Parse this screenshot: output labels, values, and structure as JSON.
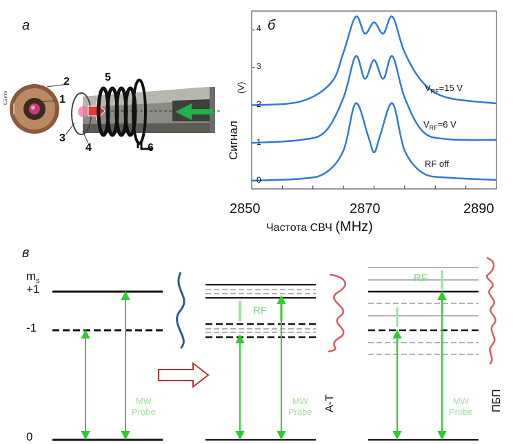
{
  "panels": {
    "a": "а",
    "b": "б",
    "v": "в"
  },
  "device": {
    "callouts": [
      "1",
      "2",
      "3",
      "4",
      "5",
      "6"
    ],
    "scale_text": "0,5 mm"
  },
  "spectrum": {
    "y_label": "Сигнал",
    "y_unit": "(V)",
    "x_label_ru": "Частота СВЧ",
    "x_label_unit": "(MHz)",
    "x_ticks": [
      "2850",
      "2870",
      "2890"
    ],
    "y_ticks": [
      "0",
      "1",
      "2",
      "3",
      "4"
    ],
    "traces": [
      {
        "label_main": "V",
        "label_sub": "RF",
        "label_value": "=15 V"
      },
      {
        "label_main": "V",
        "label_sub": "RF",
        "label_value": "=6 V"
      },
      {
        "label_main": "RF off",
        "label_sub": "",
        "label_value": ""
      }
    ],
    "colors": {
      "measured": "#2e7ad6",
      "fit": "#ef6f72"
    }
  },
  "chart_data": {
    "type": "line",
    "xlabel": "Частота СВЧ (MHz)",
    "ylabel": "Сигнал (V)",
    "xlim": [
      2850,
      2890
    ],
    "ylim": [
      0,
      4.5
    ],
    "series": [
      {
        "name": "RF off",
        "x": [
          2850,
          2858,
          2862,
          2865,
          2867,
          2869,
          2870,
          2871,
          2873,
          2875,
          2878,
          2882,
          2890
        ],
        "y": [
          0,
          0.05,
          0.2,
          0.8,
          2.05,
          1.2,
          0.75,
          1.2,
          2.05,
          0.8,
          0.2,
          0.08,
          0.02
        ]
      },
      {
        "name": "V_RF=6 V",
        "x": [
          2850,
          2858,
          2862,
          2865,
          2867,
          2868.5,
          2870,
          2871.5,
          2873,
          2875,
          2878,
          2882,
          2890
        ],
        "y": [
          1,
          1.08,
          1.3,
          2.2,
          3.3,
          2.7,
          3.2,
          2.7,
          3.3,
          2.2,
          1.3,
          1.1,
          1.08
        ]
      },
      {
        "name": "V_RF=15 V",
        "x": [
          2850,
          2858,
          2863,
          2865,
          2867,
          2868.5,
          2870,
          2871.5,
          2873,
          2875,
          2878,
          2882,
          2890
        ],
        "y": [
          2,
          2.1,
          2.6,
          3.4,
          4.35,
          3.9,
          4.2,
          3.9,
          4.35,
          3.4,
          2.6,
          2.2,
          2.05
        ]
      }
    ]
  },
  "levels": {
    "ms_label": "m",
    "ms_sub": "s",
    "plus1": "+1",
    "minus1": "-1",
    "zero": "0",
    "rf": "RF",
    "mw": "MW",
    "probe": "Probe",
    "at": "A-T",
    "pbp": "ПБП",
    "colors": {
      "green": "#2ecc2e",
      "light_green": "#9be39b",
      "curve_blue": "#2c5d8c",
      "curve_red": "#e0585c"
    }
  }
}
